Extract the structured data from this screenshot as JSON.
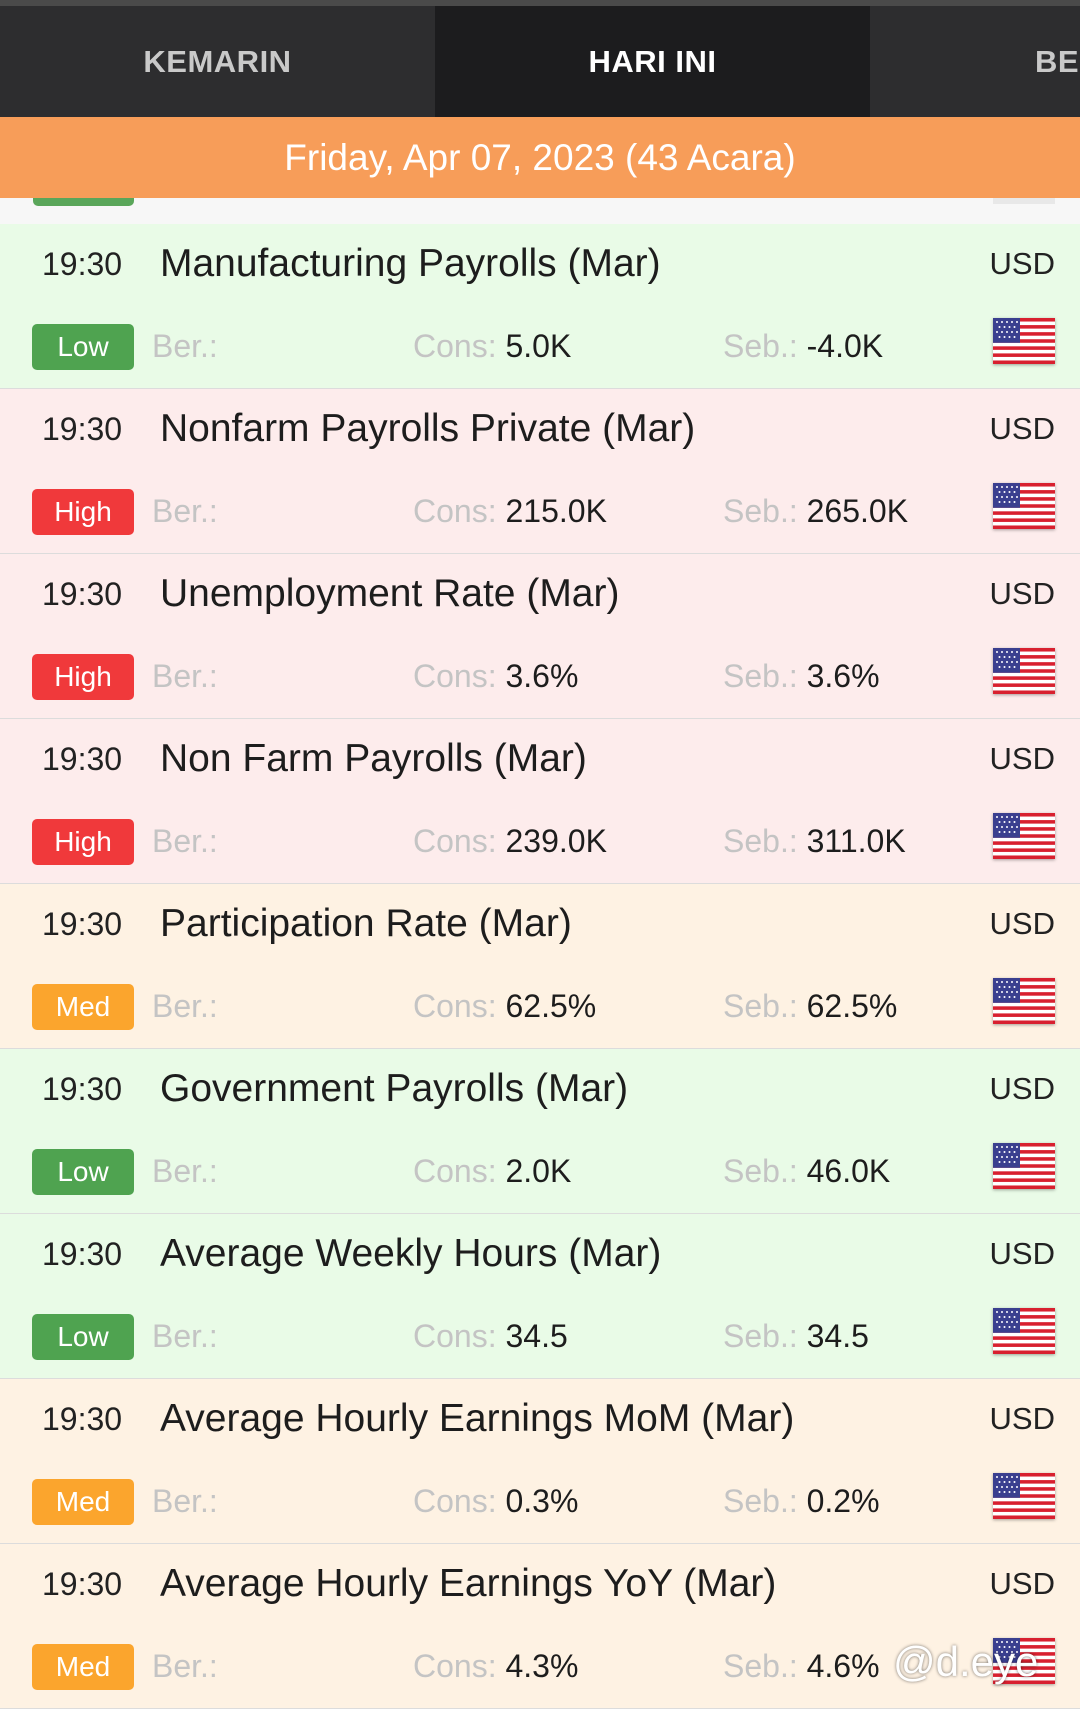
{
  "tabs": [
    {
      "label": "KEMARIN",
      "active": false
    },
    {
      "label": "HARI INI",
      "active": true
    },
    {
      "label": "BES",
      "active": false
    }
  ],
  "date_header": "Friday, Apr 07, 2023 (43 Acara)",
  "labels": {
    "actual": "Ber.:",
    "consensus": "Cons:",
    "previous": "Seb.:"
  },
  "events": [
    {
      "time": "19:30",
      "title": "Manufacturing Payrolls (Mar)",
      "currency": "USD",
      "impact": "Low",
      "impact_class": "low",
      "actual": "",
      "consensus": "5.0K",
      "previous": "-4.0K"
    },
    {
      "time": "19:30",
      "title": "Nonfarm Payrolls Private (Mar)",
      "currency": "USD",
      "impact": "High",
      "impact_class": "high",
      "actual": "",
      "consensus": "215.0K",
      "previous": "265.0K"
    },
    {
      "time": "19:30",
      "title": "Unemployment Rate (Mar)",
      "currency": "USD",
      "impact": "High",
      "impact_class": "high",
      "actual": "",
      "consensus": "3.6%",
      "previous": "3.6%"
    },
    {
      "time": "19:30",
      "title": "Non Farm Payrolls (Mar)",
      "currency": "USD",
      "impact": "High",
      "impact_class": "high",
      "actual": "",
      "consensus": "239.0K",
      "previous": "311.0K"
    },
    {
      "time": "19:30",
      "title": "Participation Rate (Mar)",
      "currency": "USD",
      "impact": "Med",
      "impact_class": "med",
      "actual": "",
      "consensus": "62.5%",
      "previous": "62.5%"
    },
    {
      "time": "19:30",
      "title": "Government Payrolls (Mar)",
      "currency": "USD",
      "impact": "Low",
      "impact_class": "low",
      "actual": "",
      "consensus": "2.0K",
      "previous": "46.0K"
    },
    {
      "time": "19:30",
      "title": "Average Weekly Hours (Mar)",
      "currency": "USD",
      "impact": "Low",
      "impact_class": "low",
      "actual": "",
      "consensus": "34.5",
      "previous": "34.5"
    },
    {
      "time": "19:30",
      "title": "Average Hourly Earnings MoM (Mar)",
      "currency": "USD",
      "impact": "Med",
      "impact_class": "med",
      "actual": "",
      "consensus": "0.3%",
      "previous": "0.2%"
    },
    {
      "time": "19:30",
      "title": "Average Hourly Earnings YoY (Mar)",
      "currency": "USD",
      "impact": "Med",
      "impact_class": "med",
      "actual": "",
      "consensus": "4.3%",
      "previous": "4.6%"
    }
  ],
  "flag_icon": "us-flag-icon",
  "watermark": "@d.eye",
  "colors": {
    "low": "#4fa350",
    "high": "#f0393b",
    "med": "#fba52d",
    "date_bar": "#f79d59"
  }
}
